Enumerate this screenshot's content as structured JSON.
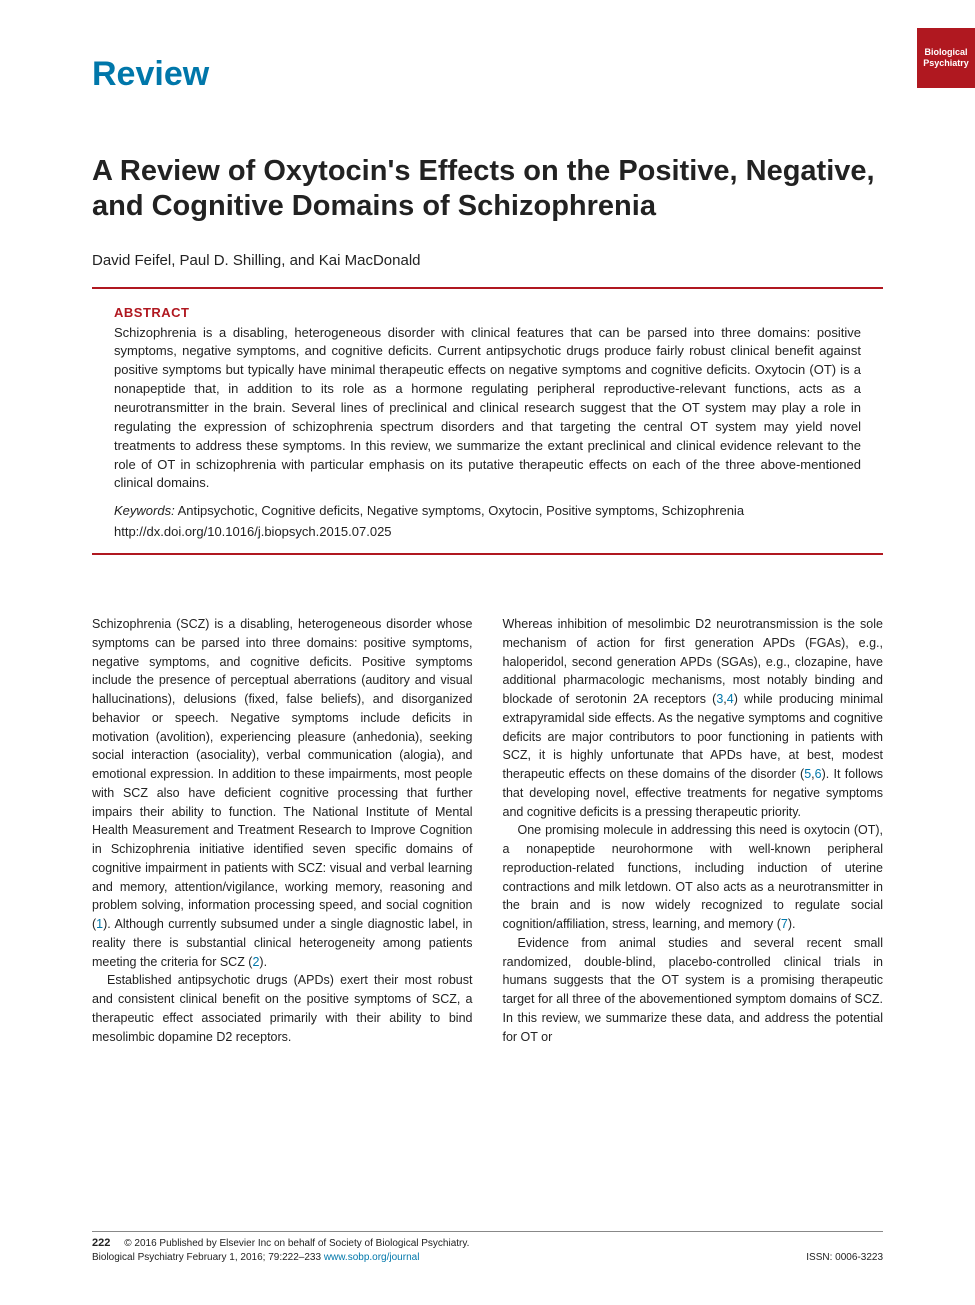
{
  "journal_tab": "Biological\nPsychiatry",
  "article_type": "Review",
  "title": "A Review of Oxytocin's Effects on the Positive, Negative, and Cognitive Domains of Schizophrenia",
  "authors": "David Feifel, Paul D. Shilling, and Kai MacDonald",
  "abstract": {
    "heading": "ABSTRACT",
    "text": "Schizophrenia is a disabling, heterogeneous disorder with clinical features that can be parsed into three domains: positive symptoms, negative symptoms, and cognitive deficits. Current antipsychotic drugs produce fairly robust clinical benefit against positive symptoms but typically have minimal therapeutic effects on negative symptoms and cognitive deficits. Oxytocin (OT) is a nonapeptide that, in addition to its role as a hormone regulating peripheral reproductive-relevant functions, acts as a neurotransmitter in the brain. Several lines of preclinical and clinical research suggest that the OT system may play a role in regulating the expression of schizophrenia spectrum disorders and that targeting the central OT system may yield novel treatments to address these symptoms. In this review, we summarize the extant preclinical and clinical evidence relevant to the role of OT in schizophrenia with particular emphasis on its putative therapeutic effects on each of the three above-mentioned clinical domains.",
    "keywords_label": "Keywords:",
    "keywords": " Antipsychotic, Cognitive deficits, Negative symptoms, Oxytocin, Positive symptoms, Schizophrenia",
    "doi": "http://dx.doi.org/10.1016/j.biopsych.2015.07.025"
  },
  "body": {
    "col1": {
      "p1a": "Schizophrenia (SCZ) is a disabling, heterogeneous disorder whose symptoms can be parsed into three domains: positive symptoms, negative symptoms, and cognitive deficits. Positive symptoms include the presence of perceptual aberrations (auditory and visual hallucinations), delusions (fixed, false beliefs), and disorganized behavior or speech. Negative symptoms include deficits in motivation (avolition), experiencing pleasure (anhedonia), seeking social interaction (asociality), verbal communication (alogia), and emotional expression. In addition to these impairments, most people with SCZ also have deficient cognitive processing that further impairs their ability to function. The National Institute of Mental Health Measurement and Treatment Research to Improve Cognition in Schizophrenia initiative identified seven specific domains of cognitive impairment in patients with SCZ: visual and verbal learning and memory, attention/vigilance, working memory, reasoning and problem solving, information processing speed, and social cognition (",
      "ref1": "1",
      "p1b": "). Although currently subsumed under a single diagnostic label, in reality there is substantial clinical heterogeneity among patients meeting the criteria for SCZ (",
      "ref2": "2",
      "p1c": ").",
      "p2": "Established antipsychotic drugs (APDs) exert their most robust and consistent clinical benefit on the positive symptoms of SCZ, a therapeutic effect associated primarily with their ability to bind mesolimbic dopamine D2 receptors."
    },
    "col2": {
      "p1a": "Whereas inhibition of mesolimbic D2 neurotransmission is the sole mechanism of action for first generation APDs (FGAs), e.g., haloperidol, second generation APDs (SGAs), e.g., clozapine, have additional pharmacologic mechanisms, most notably binding and blockade of serotonin 2A receptors (",
      "ref3": "3",
      "comma34": ",",
      "ref4": "4",
      "p1b": ") while producing minimal extrapyramidal side effects. As the negative symptoms and cognitive deficits are major contributors to poor functioning in patients with SCZ, it is highly unfortunate that APDs have, at best, modest therapeutic effects on these domains of the disorder (",
      "ref5": "5",
      "comma56": ",",
      "ref6": "6",
      "p1c": "). It follows that developing novel, effective treatments for negative symptoms and cognitive deficits is a pressing therapeutic priority.",
      "p2a": "One promising molecule in addressing this need is oxytocin (OT), a nonapeptide neurohormone with well-known peripheral reproduction-related functions, including induction of uterine contractions and milk letdown. OT also acts as a neurotransmitter in the brain and is now widely recognized to regulate social cognition/affiliation, stress, learning, and memory (",
      "ref7": "7",
      "p2b": ").",
      "p3": "Evidence from animal studies and several recent small randomized, double-blind, placebo-controlled clinical trials in humans suggests that the OT system is a promising therapeutic target for all three of the abovementioned symptom domains of SCZ. In this review, we summarize these data, and address the potential for OT or"
    }
  },
  "footer": {
    "page_num": "222",
    "copyright": "© 2016 Published by Elsevier Inc on behalf of Society of Biological Psychiatry.",
    "citation": "Biological Psychiatry February 1, 2016; 79:222–233 ",
    "journal_url": "www.sobp.org/journal",
    "issn": "ISSN: 0006-3223"
  },
  "colors": {
    "accent_red": "#b01820",
    "accent_blue": "#0077aa",
    "text": "#222222",
    "background": "#ffffff"
  }
}
